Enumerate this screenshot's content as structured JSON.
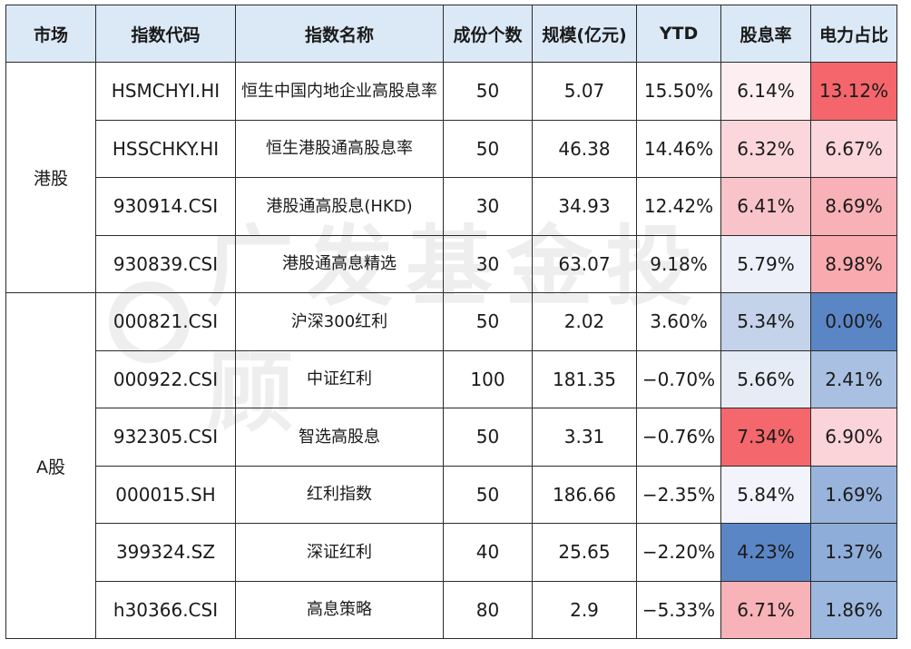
{
  "headers": [
    "市场",
    "指数代码",
    "指数名称",
    "成份个数",
    "规模(亿元)",
    "YTD",
    "股息率",
    "电力占比"
  ],
  "groups": [
    {
      "market": "港股",
      "rows": [
        {
          "code": "HSMCHYI.HI",
          "name": "恒生中国内地企业高股息率",
          "count": "50",
          "scale": "5.07",
          "ytd": "15.50%",
          "dividend": "6.14%",
          "power": "13.12%"
        },
        {
          "code": "HSSCHKY.HI",
          "name": "恒生港股通高股息率",
          "count": "50",
          "scale": "46.38",
          "ytd": "14.46%",
          "dividend": "6.32%",
          "power": "6.67%"
        },
        {
          "code": "930914.CSI",
          "name": "港股通高股息(HKD)",
          "count": "30",
          "scale": "34.93",
          "ytd": "12.42%",
          "dividend": "6.41%",
          "power": "8.69%"
        },
        {
          "code": "930839.CSI",
          "name": "港股通高息精选",
          "count": "30",
          "scale": "63.07",
          "ytd": "9.18%",
          "dividend": "5.79%",
          "power": "8.98%"
        }
      ]
    },
    {
      "market": "A股",
      "rows": [
        {
          "code": "000821.CSI",
          "name": "沪深300红利",
          "count": "50",
          "scale": "2.02",
          "ytd": "3.60%",
          "dividend": "5.34%",
          "power": "0.00%"
        },
        {
          "code": "000922.CSI",
          "name": "中证红利",
          "count": "100",
          "scale": "181.35",
          "ytd": "−0.70%",
          "dividend": "5.66%",
          "power": "2.41%"
        },
        {
          "code": "932305.CSI",
          "name": "智选高股息",
          "count": "50",
          "scale": "3.31",
          "ytd": "−0.76%",
          "dividend": "7.34%",
          "power": "6.90%"
        },
        {
          "code": "000015.SH",
          "name": "红利指数",
          "count": "50",
          "scale": "186.66",
          "ytd": "−2.35%",
          "dividend": "5.84%",
          "power": "1.69%"
        },
        {
          "code": "399324.SZ",
          "name": "深证红利",
          "count": "40",
          "scale": "25.65",
          "ytd": "−2.20%",
          "dividend": "4.23%",
          "power": "1.37%"
        },
        {
          "code": "h30366.CSI",
          "name": "高息策略",
          "count": "80",
          "scale": "2.9",
          "ytd": "−5.33%",
          "dividend": "6.71%",
          "power": "1.86%"
        }
      ]
    }
  ],
  "heatmap_colors": {
    "dividend": [
      "#fdeff1",
      "#fbd7dc",
      "#f9c4c9",
      "#eef0f9",
      "#c4d3ea",
      "#e6ecf6",
      "#f4676c",
      "#f2f3fb",
      "#5b86c6",
      "#f8b3b8"
    ],
    "power": [
      "#f4666b",
      "#fbd6db",
      "#f8b1b6",
      "#f8aaaf",
      "#5b86c6",
      "#a9c0e2",
      "#fbd4d9",
      "#98b4dc",
      "#8fadd9",
      "#9db8de"
    ]
  },
  "header_bg": "#dbe8f6",
  "watermark": "广发基金投顾"
}
